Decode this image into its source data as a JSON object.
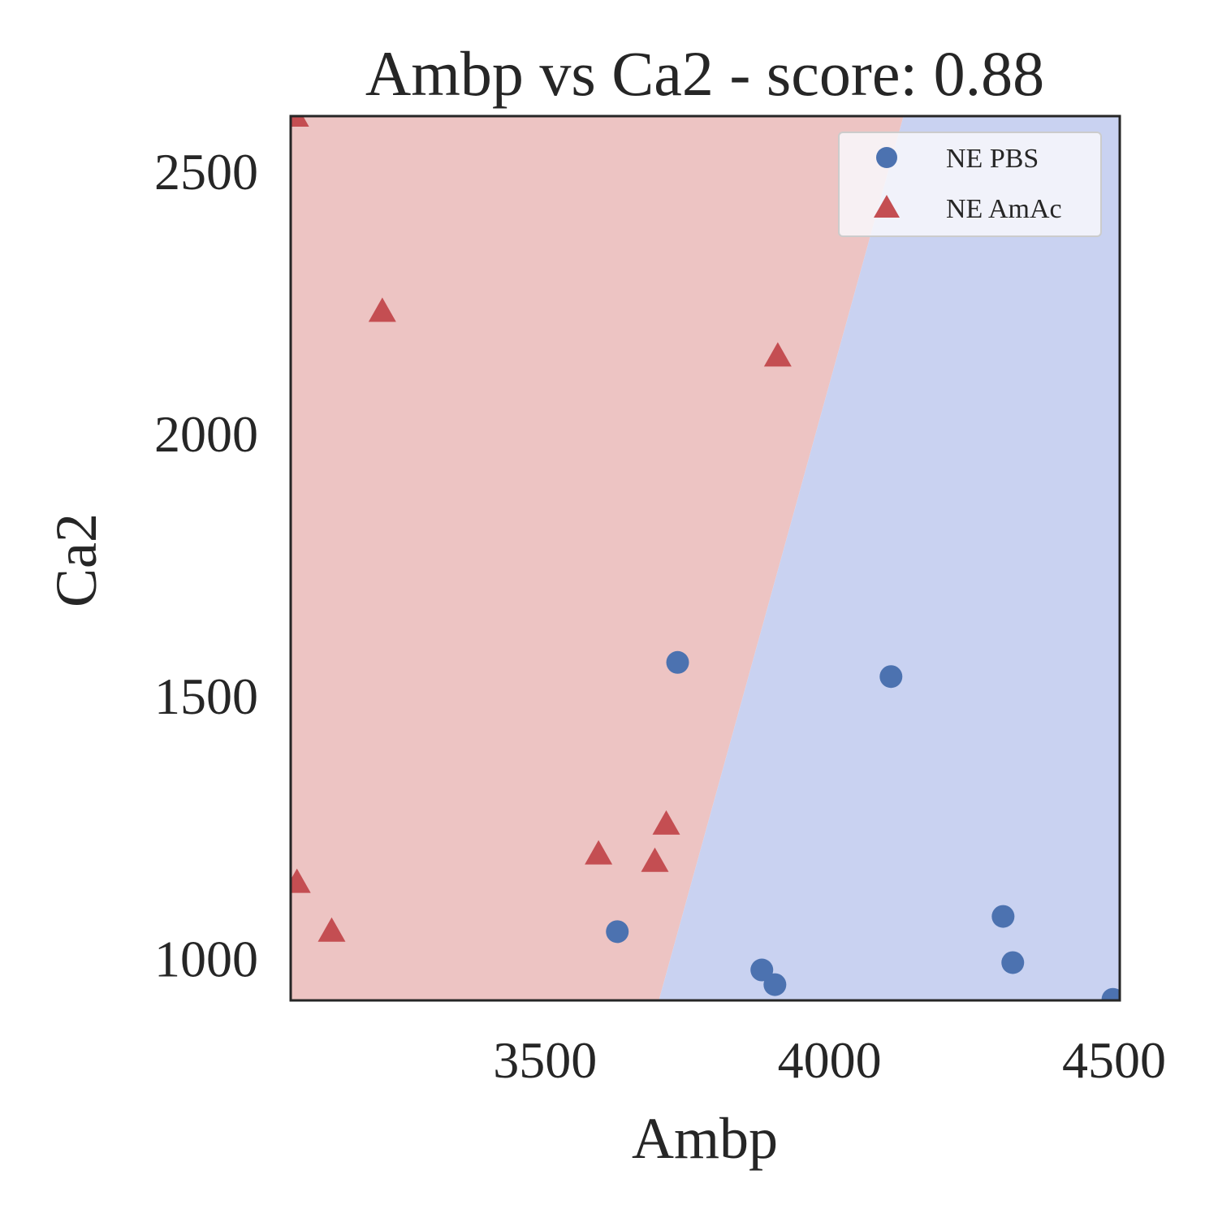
{
  "chart_data": {
    "type": "scatter",
    "title": "Ambp vs Ca2 - score: 0.88",
    "xlabel": "Ambp",
    "ylabel": "Ca2",
    "xlim": [
      3053,
      4510
    ],
    "ylim": [
      920,
      2605
    ],
    "xticks": [
      3500,
      4000,
      4500
    ],
    "yticks": [
      1000,
      1500,
      2000,
      2500
    ],
    "grid": false,
    "legend_position": "top-right",
    "decision_boundary": [
      [
        3700,
        920
      ],
      [
        4130,
        2605
      ]
    ],
    "regions": [
      {
        "class": "NE AmAc",
        "side": "left",
        "color": "#edc4c3"
      },
      {
        "class": "NE PBS",
        "side": "right",
        "color": "#c9d2f1"
      }
    ],
    "series": [
      {
        "name": "NE PBS",
        "marker": "circle",
        "color": "#4c72b0",
        "points": [
          [
            3733,
            1564
          ],
          [
            4108,
            1537
          ],
          [
            3627,
            1051
          ],
          [
            3881,
            978
          ],
          [
            3904,
            950
          ],
          [
            4305,
            1080
          ],
          [
            4322,
            992
          ],
          [
            4498,
            922
          ]
        ]
      },
      {
        "name": "NE AmAc",
        "marker": "triangle",
        "color": "#c44e52",
        "points": [
          [
            3061,
            2605
          ],
          [
            3214,
            2233
          ],
          [
            3909,
            2148
          ],
          [
            3064,
            1145
          ],
          [
            3125,
            1052
          ],
          [
            3594,
            1199
          ],
          [
            3713,
            1256
          ],
          [
            3693,
            1185
          ]
        ]
      }
    ]
  }
}
